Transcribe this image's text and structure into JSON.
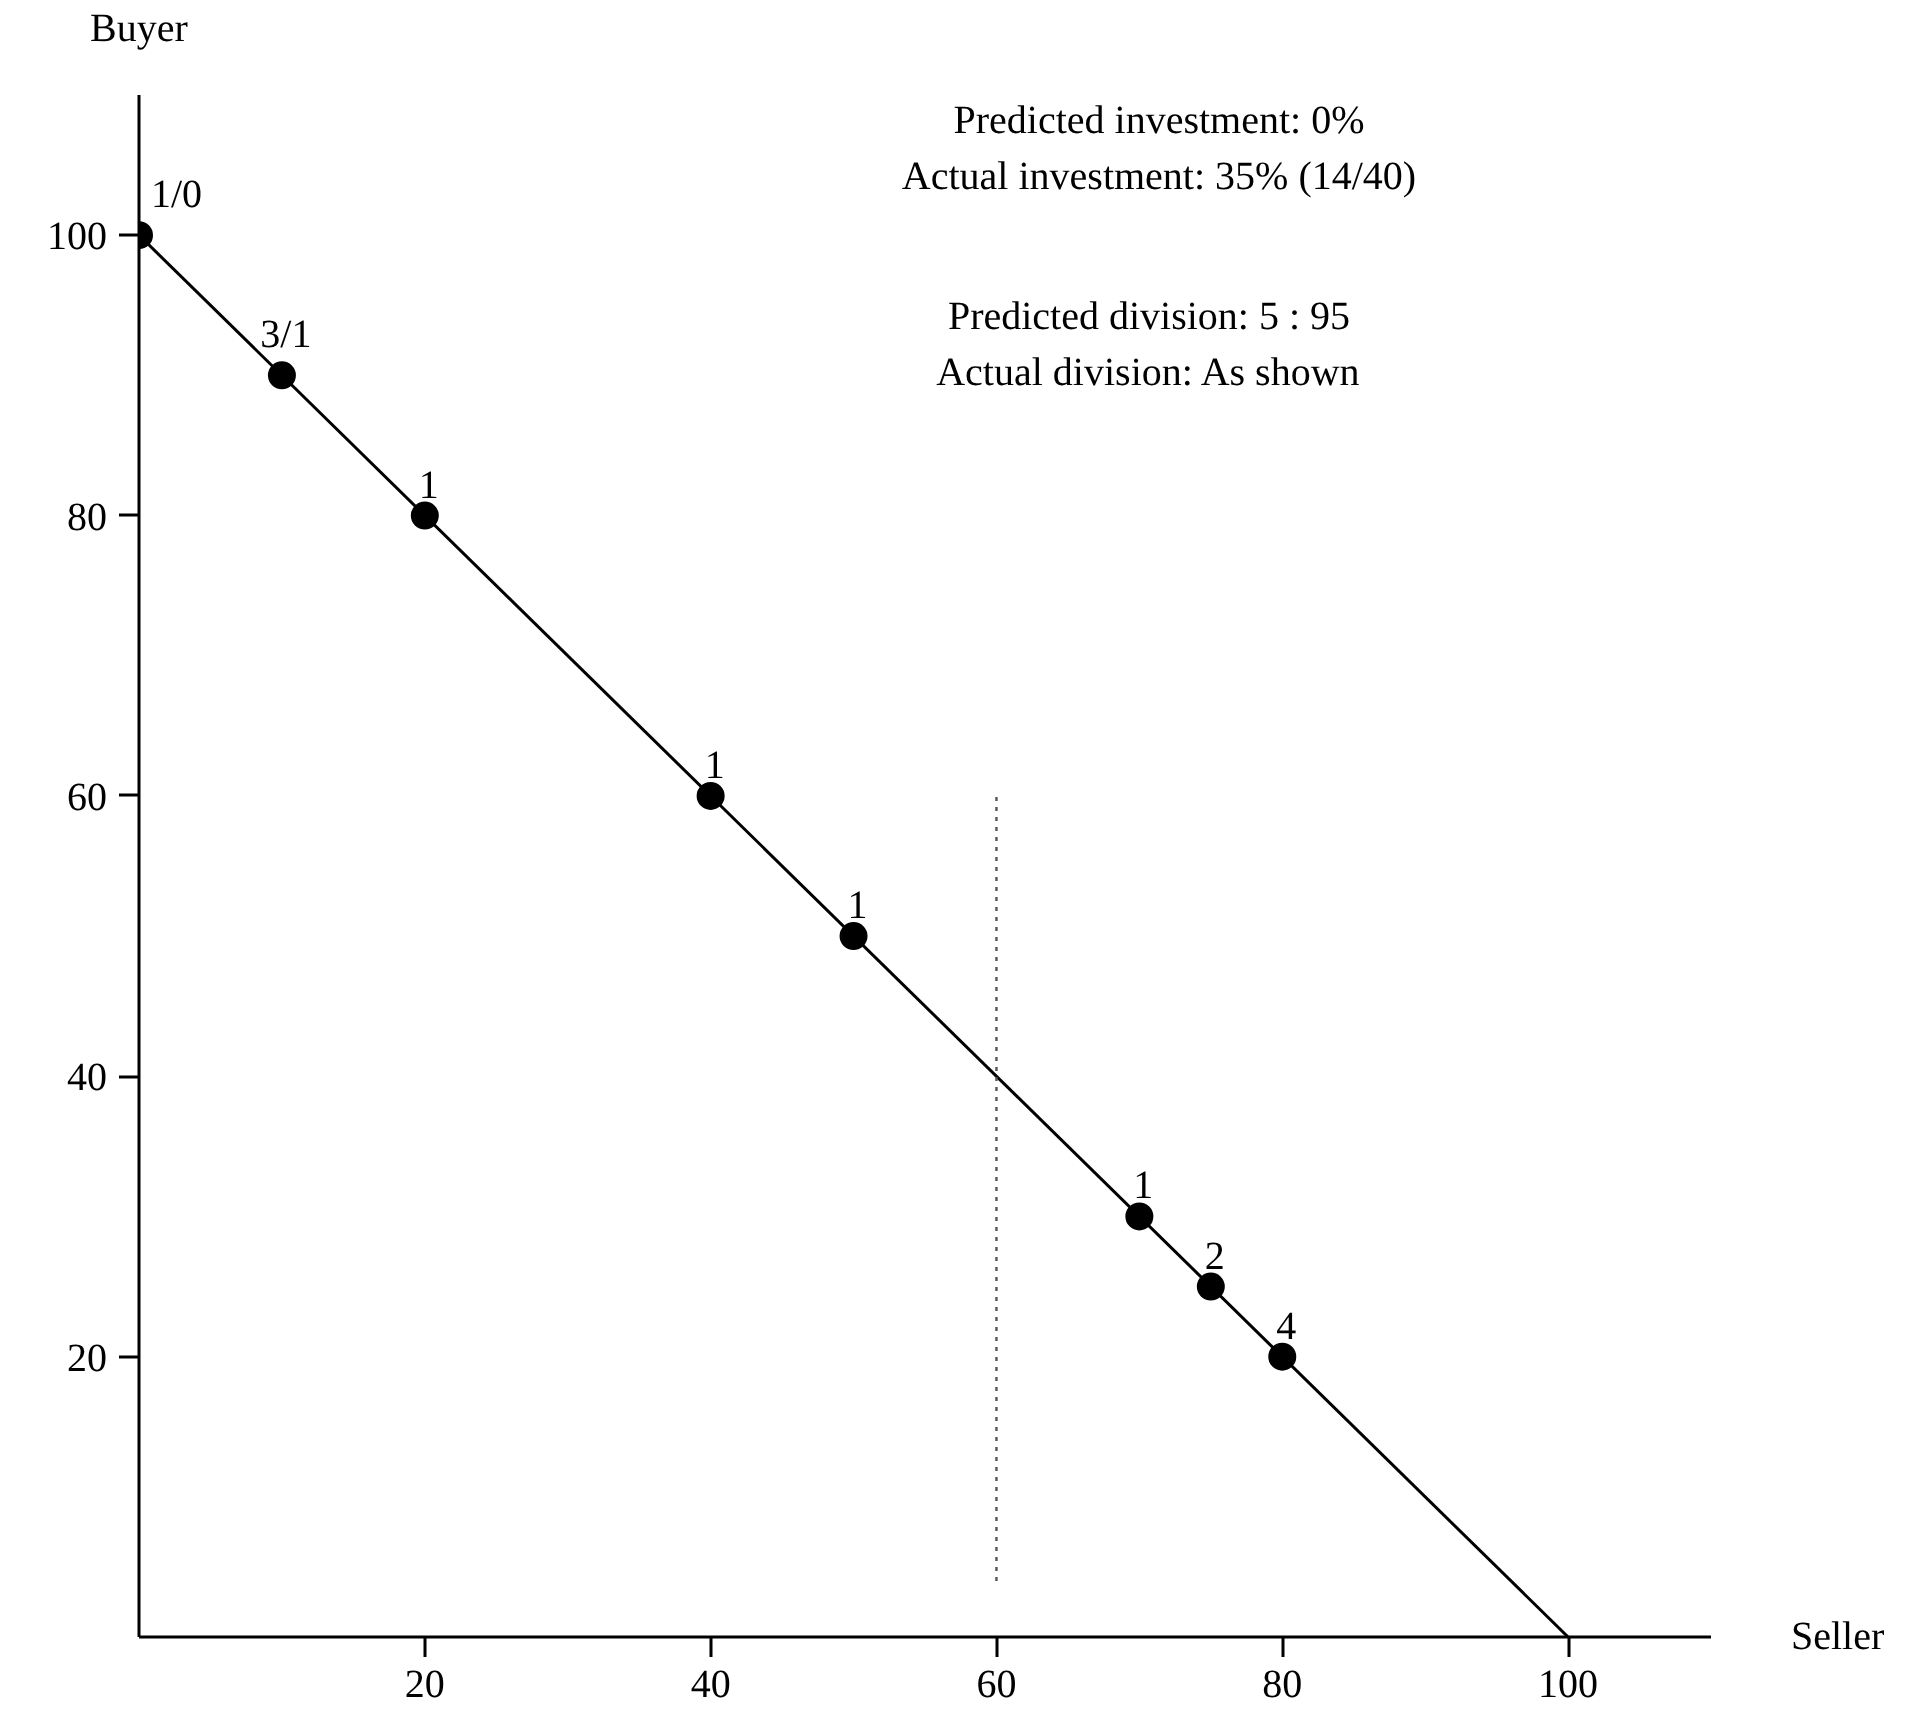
{
  "chart_data": {
    "type": "scatter",
    "xlabel": "Seller",
    "ylabel": "Buyer",
    "xlim": [
      0,
      110
    ],
    "ylim": [
      0,
      110
    ],
    "xticks": [
      20,
      40,
      60,
      80,
      100
    ],
    "yticks": [
      20,
      40,
      60,
      80,
      100
    ],
    "grid": false,
    "annotations": [
      "Predicted investment: 0%",
      "Actual investment: 35% (14/40)",
      "Predicted division: 5 : 95",
      "Actual division: As shown",
      {
        "text": "1/0",
        "x": 0,
        "y": 100
      },
      {
        "text": "3/1",
        "x": 10,
        "y": 90
      },
      {
        "text": "1",
        "x": 20,
        "y": 80
      },
      {
        "text": "1",
        "x": 40,
        "y": 60
      },
      {
        "text": "1",
        "x": 50,
        "y": 50
      },
      {
        "text": "1",
        "x": 70,
        "y": 30
      },
      {
        "text": "2",
        "x": 75,
        "y": 25
      },
      {
        "text": "4",
        "x": 80,
        "y": 20
      }
    ],
    "series": [
      {
        "type": "line",
        "color": "#000000",
        "x": [
          0,
          100
        ],
        "values": [
          100,
          0
        ],
        "marker": "none",
        "line_style": "solid"
      },
      {
        "type": "line",
        "color": "#555555",
        "x": [
          60,
          60
        ],
        "values": [
          4,
          60
        ],
        "marker": "none",
        "line_style": "dotted"
      },
      {
        "color": "#000000",
        "marker": "circle",
        "x": [
          0,
          10,
          20,
          40,
          50,
          70,
          75,
          80
        ],
        "values": [
          100,
          90,
          80,
          60,
          50,
          30,
          25,
          20
        ]
      }
    ]
  }
}
